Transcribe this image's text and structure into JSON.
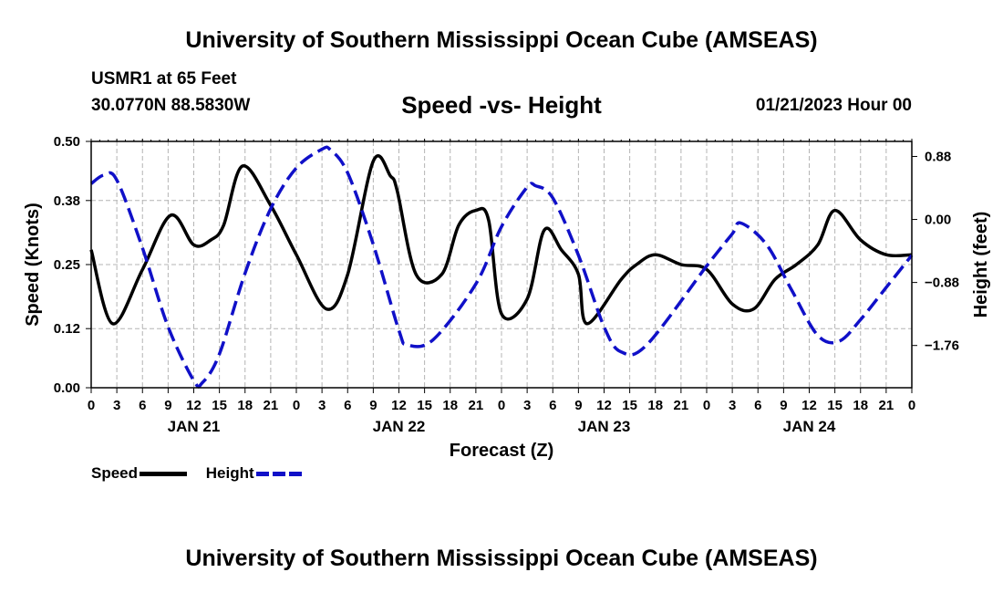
{
  "header": {
    "title": "University of Southern Mississippi Ocean Cube (AMSEAS)",
    "station": "USMR1 at 65 Feet",
    "coords": "30.0770N  88.5830W",
    "subtitle": "Speed -vs- Height",
    "datetime": "01/21/2023 Hour 00"
  },
  "footer": {
    "title": "University of Southern Mississippi Ocean Cube (AMSEAS)"
  },
  "legend": {
    "speed_label": "Speed",
    "height_label": "Height"
  },
  "colors": {
    "speed": "#000000",
    "height": "#1010c8",
    "grid": "#b4b4b4"
  },
  "chart_data": {
    "type": "line",
    "title": "Speed -vs- Height",
    "xlabel": "Forecast (Z)",
    "ylabel": "Speed (Knots)",
    "y2label": "Height (feet)",
    "x_range": [
      0,
      96
    ],
    "ylim": [
      0,
      0.5
    ],
    "y2lim": [
      -2.35,
      1.09
    ],
    "y_ticks": [
      0.0,
      0.12,
      0.25,
      0.38,
      0.5
    ],
    "y_tick_labels": [
      "0.00",
      "0.12",
      "0.25",
      "0.38",
      "0.50"
    ],
    "y2_ticks": [
      0.88,
      0.0,
      -0.88,
      -1.76
    ],
    "y2_tick_labels": [
      "0.88",
      "0.00",
      "−0.88",
      "−1.76"
    ],
    "x_ticks": [
      0,
      3,
      6,
      9,
      12,
      15,
      18,
      21,
      24,
      27,
      30,
      33,
      36,
      39,
      42,
      45,
      48,
      51,
      54,
      57,
      60,
      63,
      66,
      69,
      72,
      75,
      78,
      81,
      84,
      87,
      90,
      93,
      96
    ],
    "x_tick_labels": [
      "0",
      "3",
      "6",
      "9",
      "12",
      "15",
      "18",
      "21",
      "0",
      "3",
      "6",
      "9",
      "12",
      "15",
      "18",
      "21",
      "0",
      "3",
      "6",
      "9",
      "12",
      "15",
      "18",
      "21",
      "0",
      "3",
      "6",
      "9",
      "12",
      "15",
      "18",
      "21",
      "0"
    ],
    "date_labels": [
      {
        "x": 12,
        "label": "JAN 21"
      },
      {
        "x": 36,
        "label": "JAN 22"
      },
      {
        "x": 60,
        "label": "JAN 23"
      },
      {
        "x": 84,
        "label": "JAN 24"
      }
    ],
    "grid": true,
    "series": [
      {
        "name": "Speed",
        "axis": "left",
        "style": "solid",
        "x": [
          0,
          2.5,
          6,
          9.3,
          12,
          14,
          15.5,
          17.7,
          21,
          24,
          27.5,
          30,
          33,
          35,
          35.8,
          38,
          41,
          43,
          45,
          46.5,
          48,
          51,
          53,
          55,
          57,
          58,
          62,
          63.8,
          66,
          69,
          72,
          75,
          77.5,
          80,
          82.5,
          85,
          87,
          90,
          93,
          96
        ],
        "y": [
          0.28,
          0.13,
          0.24,
          0.35,
          0.29,
          0.3,
          0.33,
          0.45,
          0.37,
          0.27,
          0.16,
          0.23,
          0.46,
          0.43,
          0.4,
          0.23,
          0.23,
          0.33,
          0.36,
          0.34,
          0.15,
          0.18,
          0.32,
          0.28,
          0.23,
          0.13,
          0.22,
          0.25,
          0.27,
          0.25,
          0.24,
          0.17,
          0.16,
          0.22,
          0.25,
          0.29,
          0.36,
          0.3,
          0.27,
          0.27
        ]
      },
      {
        "name": "Height",
        "axis": "right",
        "style": "dashed",
        "x": [
          0,
          1.5,
          3,
          6,
          9,
          12,
          13,
          15,
          18,
          21,
          24,
          27,
          28,
          30,
          33,
          36,
          37,
          40,
          45,
          48,
          51,
          52,
          54,
          57,
          60,
          62,
          65,
          72,
          75,
          76,
          79,
          82,
          85,
          87.5,
          90,
          93,
          96
        ],
        "y": [
          0.5,
          0.62,
          0.55,
          -0.4,
          -1.5,
          -2.25,
          -2.28,
          -1.88,
          -0.75,
          0.15,
          0.72,
          0.98,
          0.97,
          0.65,
          -0.35,
          -1.55,
          -1.75,
          -1.68,
          -0.9,
          -0.1,
          0.45,
          0.47,
          0.3,
          -0.5,
          -1.5,
          -1.85,
          -1.75,
          -0.65,
          -0.2,
          -0.05,
          -0.35,
          -1.0,
          -1.62,
          -1.7,
          -1.4,
          -0.95,
          -0.5
        ]
      }
    ]
  }
}
